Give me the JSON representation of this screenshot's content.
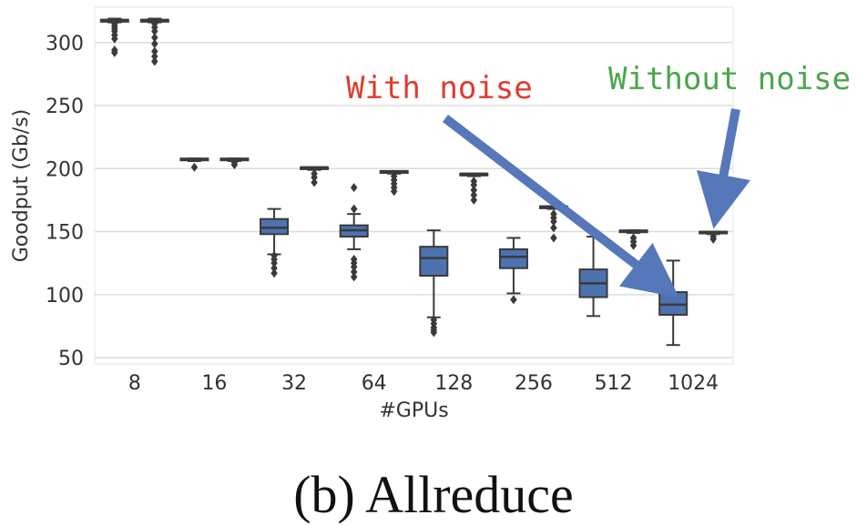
{
  "caption": "(b) Allreduce",
  "colors": {
    "box_fill": "#4c72b0",
    "box_edge": "#3a3a3a",
    "grid": "#dddddd",
    "arrow": "#5677b9",
    "with_noise_text": "#e03b2e",
    "without_noise_text": "#4aa64a"
  },
  "chart_data": {
    "type": "box",
    "title": "",
    "xlabel": "#GPUs",
    "ylabel": "Goodput (Gb/s)",
    "ylim": [
      45,
      328
    ],
    "yticks": [
      50,
      100,
      150,
      200,
      250,
      300
    ],
    "grid": true,
    "categories": [
      "8",
      "16",
      "32",
      "64",
      "128",
      "256",
      "512",
      "1024"
    ],
    "series": [
      {
        "name": "With noise",
        "boxes": [
          {
            "whisker_low": 316,
            "q1": 317,
            "median": 318,
            "q3": 318,
            "whisker_high": 319,
            "outliers": [
              292,
              294,
              303,
              306,
              309,
              311,
              313,
              315
            ]
          },
          {
            "whisker_low": 206,
            "q1": 207,
            "median": 207,
            "q3": 208,
            "whisker_high": 208,
            "outliers": [
              201
            ]
          },
          {
            "whisker_low": 132,
            "q1": 148,
            "median": 153,
            "q3": 160,
            "whisker_high": 168,
            "outliers": [
              117,
              121,
              125,
              128,
              131
            ]
          },
          {
            "whisker_low": 136,
            "q1": 146,
            "median": 151,
            "q3": 155,
            "whisker_high": 164,
            "outliers": [
              114,
              118,
              122,
              125,
              128,
              168,
              185
            ]
          },
          {
            "whisker_low": 82,
            "q1": 115,
            "median": 129,
            "q3": 138,
            "whisker_high": 151,
            "outliers": [
              70,
              72,
              74,
              77,
              80
            ]
          },
          {
            "whisker_low": 101,
            "q1": 121,
            "median": 130,
            "q3": 136,
            "whisker_high": 145,
            "outliers": [
              96
            ]
          },
          {
            "whisker_low": 83,
            "q1": 98,
            "median": 109,
            "q3": 120,
            "whisker_high": 146,
            "outliers": []
          },
          {
            "whisker_low": 60,
            "q1": 84,
            "median": 92,
            "q3": 102,
            "whisker_high": 127,
            "outliers": []
          }
        ]
      },
      {
        "name": "Without noise",
        "boxes": [
          {
            "whisker_low": 316,
            "q1": 317,
            "median": 318,
            "q3": 318,
            "whisker_high": 319,
            "outliers": [
              285,
              289,
              293,
              299,
              304,
              309,
              312,
              315
            ]
          },
          {
            "whisker_low": 206,
            "q1": 207,
            "median": 207,
            "q3": 208,
            "whisker_high": 208,
            "outliers": [
              203,
              205
            ]
          },
          {
            "whisker_low": 199,
            "q1": 200,
            "median": 201,
            "q3": 201,
            "whisker_high": 201,
            "outliers": [
              189,
              193,
              196
            ]
          },
          {
            "whisker_low": 196,
            "q1": 197,
            "median": 198,
            "q3": 198,
            "whisker_high": 198,
            "outliers": [
              182,
              185,
              188,
              191,
              194
            ]
          },
          {
            "whisker_low": 194,
            "q1": 195,
            "median": 196,
            "q3": 196,
            "whisker_high": 196,
            "outliers": [
              175,
              179,
              183,
              187,
              190
            ]
          },
          {
            "whisker_low": 168,
            "q1": 169,
            "median": 170,
            "q3": 170,
            "whisker_high": 170,
            "outliers": [
              145,
              153,
              158,
              161,
              164
            ]
          },
          {
            "whisker_low": 149,
            "q1": 150,
            "median": 150,
            "q3": 151,
            "whisker_high": 151,
            "outliers": [
              139,
              142,
              145
            ]
          },
          {
            "whisker_low": 148,
            "q1": 149,
            "median": 149,
            "q3": 150,
            "whisker_high": 150,
            "outliers": [
              144,
              146
            ]
          }
        ]
      }
    ],
    "annotations": [
      {
        "text": "With noise",
        "color": "#e03b2e"
      },
      {
        "text": "Without noise",
        "color": "#4aa64a"
      }
    ]
  }
}
